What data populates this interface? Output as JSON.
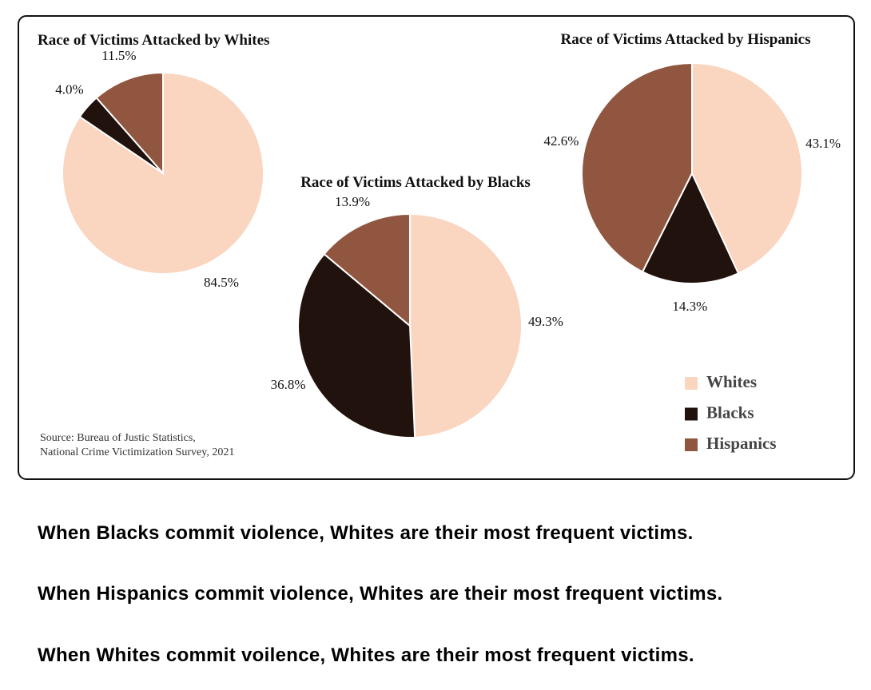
{
  "chart_data": [
    {
      "type": "pie",
      "title": "Race of Victims Attacked by Whites",
      "categories": [
        "Whites",
        "Blacks",
        "Hispanics"
      ],
      "values": [
        84.5,
        4.0,
        11.5
      ],
      "value_labels": [
        "84.5%",
        "4.0%",
        "11.5%"
      ],
      "colors": [
        "#fad5c0",
        "#21120d",
        "#915640"
      ]
    },
    {
      "type": "pie",
      "title": "Race of Victims Attacked by Blacks",
      "categories": [
        "Whites",
        "Blacks",
        "Hispanics"
      ],
      "values": [
        49.3,
        36.8,
        13.9
      ],
      "value_labels": [
        "49.3%",
        "36.8%",
        "13.9%"
      ],
      "colors": [
        "#fad5c0",
        "#21120d",
        "#915640"
      ]
    },
    {
      "type": "pie",
      "title": "Race of Victims Attacked by Hispanics",
      "categories": [
        "Whites",
        "Blacks",
        "Hispanics"
      ],
      "values": [
        43.1,
        14.3,
        42.6
      ],
      "value_labels": [
        "43.1%",
        "14.3%",
        "42.6%"
      ],
      "colors": [
        "#fad5c0",
        "#21120d",
        "#915640"
      ]
    }
  ],
  "source": [
    "Source: Bureau of Justic Statistics,",
    "National Crime Victimization Survey, 2021"
  ],
  "statements": [
    "When Blacks commit violence, Whites are their most frequent victims.",
    "When Hispanics commit violence, Whites are their most frequent victims.",
    "When Whites commit voilence, Whites are their most frequent victims."
  ]
}
